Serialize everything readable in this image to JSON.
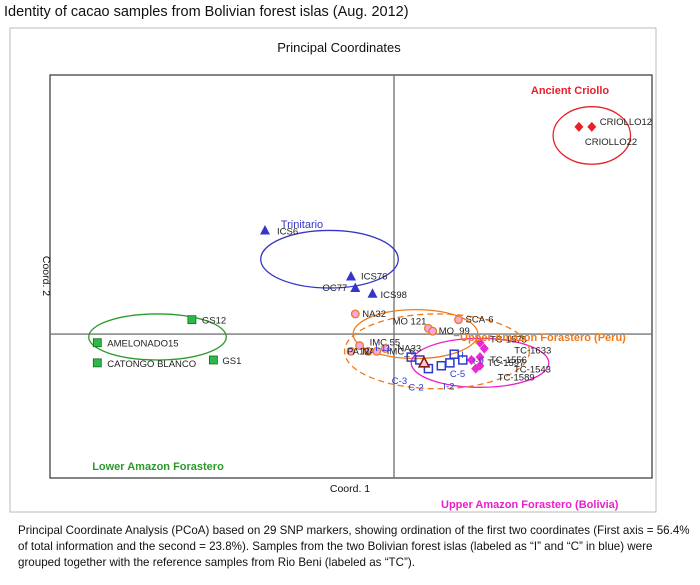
{
  "title": "Identity of cacao samples from Bolivian forest islas (Aug.  2012)",
  "caption": "Principal Coordinate Analysis (PCoA) based on 29 SNP markers, showing ordination of the first two coordinates (First axis = 56.4% of total information and the second = 23.8%).   Samples from the two Bolivian forest islas (labeled as “I” and “C” in blue) were grouped together with the reference samples from Rio Beni (labeled as “TC”).",
  "chart_data": {
    "type": "scatter",
    "title": "Principal Coordinates",
    "xlabel": "Coord. 1",
    "ylabel": "Coord. 2",
    "xlim": [
      -0.8,
      0.6
    ],
    "ylim": [
      -0.5,
      0.9
    ],
    "axis_lines": {
      "x": 0,
      "y": 0
    },
    "groups": [
      {
        "name": "Ancient Criollo",
        "color": "#e8202a",
        "ellipse": {
          "cx": 0.46,
          "cy": 0.69,
          "rx": 0.09,
          "ry": 0.1,
          "dashed": false
        },
        "points": [
          {
            "label": "CRIOLLO12",
            "x": 0.46,
            "y": 0.72,
            "marker": "diamond",
            "color": "#e8202a"
          },
          {
            "label": "CRIOLLO22",
            "x": 0.43,
            "y": 0.72,
            "marker": "diamond",
            "color": "#e8202a"
          }
        ]
      },
      {
        "name": "Trinitario",
        "color": "#3535c8",
        "ellipse": {
          "cx": -0.15,
          "cy": 0.26,
          "rx": 0.16,
          "ry": 0.1,
          "dashed": false
        },
        "points": [
          {
            "label": "ICS6",
            "x": -0.3,
            "y": 0.36,
            "marker": "triangle",
            "color": "#3535c8"
          },
          {
            "label": "ICS76",
            "x": -0.1,
            "y": 0.2,
            "marker": "triangle",
            "color": "#3535c8"
          },
          {
            "label": "OC77",
            "x": -0.09,
            "y": 0.16,
            "marker": "triangle",
            "color": "#3535c8"
          },
          {
            "label": "ICS98",
            "x": -0.05,
            "y": 0.14,
            "marker": "triangle",
            "color": "#3535c8"
          }
        ]
      },
      {
        "name": "Lower Amazon Forastero",
        "color": "#2a9a2a",
        "ellipse": {
          "cx": -0.55,
          "cy": -0.01,
          "rx": 0.16,
          "ry": 0.08,
          "dashed": false
        },
        "points": [
          {
            "label": "GS12",
            "x": -0.47,
            "y": 0.05,
            "marker": "square",
            "color": "#2db84a"
          },
          {
            "label": "AMELONADO15",
            "x": -0.69,
            "y": -0.03,
            "marker": "square",
            "color": "#2db84a"
          },
          {
            "label": "GS1",
            "x": -0.42,
            "y": -0.09,
            "marker": "square",
            "color": "#2db84a"
          },
          {
            "label": "CATONGO BLANCO",
            "x": -0.69,
            "y": -0.1,
            "marker": "square",
            "color": "#2db84a"
          }
        ]
      },
      {
        "name": "Upper Amazon Forastero  (Peru)",
        "color": "#f07a1a",
        "ellipse": {
          "cx": 0.05,
          "cy": 0.0,
          "rx": 0.145,
          "ry": 0.085,
          "dashed": false
        },
        "points": [
          {
            "label": "NA32",
            "x": -0.09,
            "y": 0.07,
            "marker": "circle",
            "color": "#f07a1a"
          },
          {
            "label": "SCA-6",
            "x": 0.15,
            "y": 0.05,
            "marker": "circle",
            "color": "#f07a1a"
          },
          {
            "label": "MO 121",
            "x": 0.08,
            "y": 0.02,
            "marker": "circle",
            "color": "#f07a1a"
          },
          {
            "label": "MO_99",
            "x": 0.09,
            "y": 0.01,
            "marker": "circle",
            "color": "#f07a1a"
          },
          {
            "label": "IMC 55",
            "x": -0.08,
            "y": -0.04,
            "marker": "circle",
            "color": "#f07a1a"
          },
          {
            "label": "NA33",
            "x": -0.02,
            "y": -0.05,
            "marker": "circle",
            "color": "#f07a1a"
          },
          {
            "label": "NA3",
            "x": -0.06,
            "y": -0.06,
            "marker": "circle",
            "color": "#f07a1a"
          },
          {
            "label": "PA12",
            "x": -0.1,
            "y": -0.06,
            "marker": "circle",
            "color": "#f07a1a"
          },
          {
            "label": "IMC_6",
            "x": -0.04,
            "y": -0.06,
            "marker": "circle",
            "color": "#f07a1a"
          }
        ]
      },
      {
        "name": "Upper Amazon Forastero  (Bolivia)",
        "color": "#e820c8",
        "ellipse": {
          "cx": 0.2,
          "cy": -0.1,
          "rx": 0.16,
          "ry": 0.085,
          "dashed": false
        },
        "points": [
          {
            "label": "TC-1575",
            "x": 0.2,
            "y": -0.03,
            "marker": "diamond",
            "color": "#e82ad0"
          },
          {
            "label": "TC-1633",
            "x": 0.21,
            "y": -0.05,
            "marker": "diamond",
            "color": "#e82ad0"
          },
          {
            "label": "TC-1556",
            "x": 0.2,
            "y": -0.08,
            "marker": "diamond",
            "color": "#e82ad0"
          },
          {
            "label": "TC-1597",
            "x": 0.18,
            "y": -0.09,
            "marker": "diamond",
            "color": "#e82ad0"
          },
          {
            "label": "TC-1543",
            "x": 0.2,
            "y": -0.11,
            "marker": "diamond",
            "color": "#e82ad0"
          },
          {
            "label": "TC-1589",
            "x": 0.19,
            "y": -0.12,
            "marker": "diamond",
            "color": "#e82ad0"
          }
        ]
      },
      {
        "name": "",
        "color": "#2a3ad0",
        "ellipse": {
          "cx": 0.1,
          "cy": -0.06,
          "rx": 0.215,
          "ry": 0.13,
          "dashed": true,
          "color": "#f07a1a"
        },
        "points": [
          {
            "label": "I-11",
            "x": 0.04,
            "y": -0.08,
            "marker": "open-square",
            "color": "#2a3ad0"
          },
          {
            "label": "C-3",
            "x": 0.06,
            "y": -0.09,
            "marker": "open-square",
            "color": "#2a3ad0"
          },
          {
            "label": "C-2",
            "x": 0.08,
            "y": -0.12,
            "marker": "open-square",
            "color": "#2a3ad0"
          },
          {
            "label": "I-2",
            "x": 0.11,
            "y": -0.11,
            "marker": "open-square",
            "color": "#2a3ad0"
          },
          {
            "label": "C-5",
            "x": 0.13,
            "y": -0.1,
            "marker": "open-square",
            "color": "#2a3ad0"
          },
          {
            "label": "I-9",
            "x": 0.16,
            "y": -0.09,
            "marker": "open-square",
            "color": "#2a3ad0"
          },
          {
            "label": "I",
            "x": 0.14,
            "y": -0.07,
            "marker": "open-square",
            "color": "#2a3ad0"
          },
          {
            "label": "",
            "x": 0.07,
            "y": -0.1,
            "marker": "triangle-dark",
            "color": "#8b1a1a"
          }
        ]
      }
    ]
  }
}
